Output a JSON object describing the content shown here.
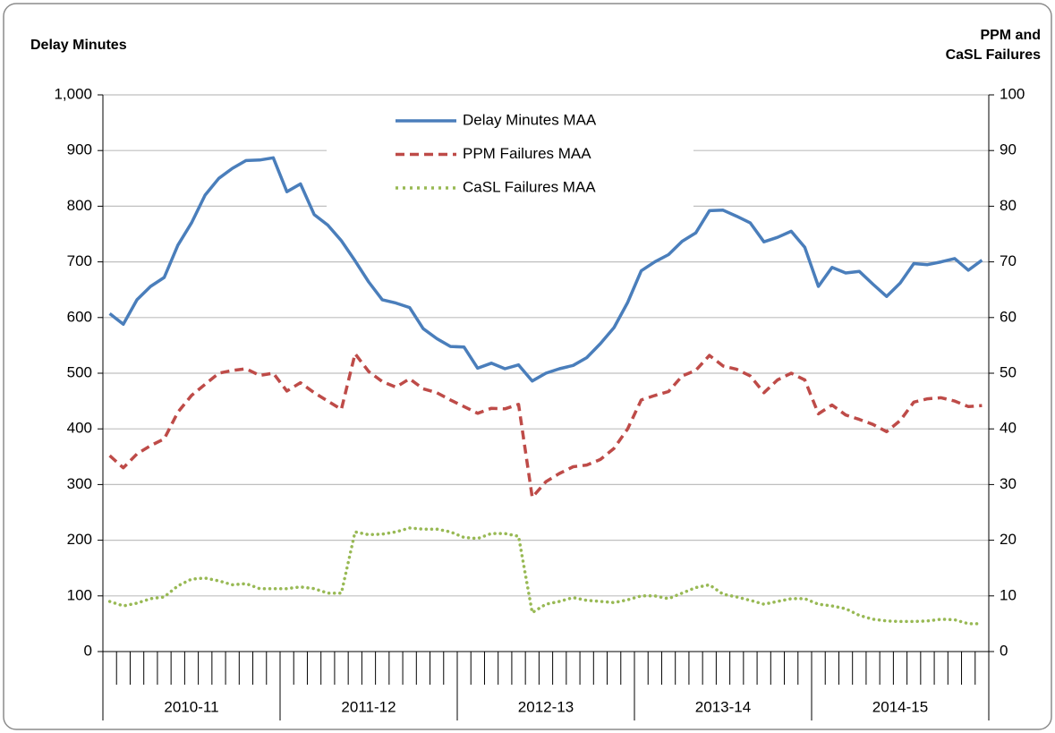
{
  "chart_data": {
    "type": "line",
    "y_label": "Delay Minutes",
    "y2_label": "PPM and\nCaSL Failures",
    "categories": [
      null,
      null,
      null,
      null,
      null,
      null,
      null,
      null,
      null,
      null,
      null,
      null,
      null,
      null,
      null,
      null,
      null,
      null,
      null,
      null,
      null,
      null,
      null,
      null,
      null,
      null,
      null,
      null,
      null,
      null,
      null,
      null,
      null,
      null,
      null,
      null,
      null,
      null,
      null,
      null,
      null,
      null,
      null,
      null,
      null,
      null,
      null,
      null,
      null,
      null,
      null,
      null,
      null,
      null,
      null,
      null,
      null,
      null,
      null,
      null,
      null,
      null,
      null,
      null,
      null
    ],
    "groups": [
      "2010-11",
      "2011-12",
      "2012-13",
      "2013-14",
      "2014-15"
    ],
    "ylim": [
      0,
      1000
    ],
    "yticks": [
      0,
      100,
      200,
      300,
      400,
      500,
      600,
      700,
      800,
      900,
      {
        "value": 1000,
        "label": "1,000"
      }
    ],
    "y2lim": [
      0,
      100
    ],
    "y2ticks": [
      0,
      10,
      20,
      30,
      40,
      50,
      60,
      70,
      80,
      90,
      100
    ],
    "grid": true,
    "series": [
      {
        "name": "Delay Minutes MAA",
        "color": "#4a7ebb",
        "dash": "none",
        "values": [
          607,
          588,
          632,
          656,
          672,
          730,
          770,
          820,
          850,
          868,
          882,
          883,
          887,
          826,
          840,
          785,
          766,
          738,
          702,
          664,
          632,
          626,
          618,
          580,
          562,
          548,
          547,
          509,
          518,
          508,
          515,
          486,
          500,
          508,
          514,
          528,
          553,
          582,
          627,
          684,
          700,
          713,
          737,
          752,
          792,
          793,
          782,
          770,
          736,
          744,
          755,
          726,
          656,
          690,
          680,
          683,
          660,
          638,
          662,
          697,
          695,
          700,
          706,
          685,
          703
        ]
      },
      {
        "name": "PPM Failures MAA",
        "color": "#be4b48",
        "dash": "dashed",
        "axis": "y2",
        "values": [
          35.2,
          33,
          35.5,
          37,
          38.2,
          43,
          46,
          48,
          50,
          50.5,
          50.8,
          49.6,
          50,
          46.8,
          48.3,
          46.5,
          45,
          43.5,
          53.5,
          50.3,
          48.5,
          47.5,
          49,
          47.2,
          46.5,
          45.2,
          44,
          42.8,
          43.7,
          43.6,
          44.4,
          27.7,
          30.5,
          32,
          33.2,
          33.5,
          34.5,
          36.5,
          40,
          45.2,
          46,
          46.7,
          49.5,
          50.5,
          53.2,
          51.3,
          50.7,
          49.5,
          46.5,
          48.8,
          50,
          48.8,
          42.7,
          44.3,
          42.5,
          41.7,
          40.8,
          39.5,
          41.5,
          44.8,
          45.4,
          45.6,
          45,
          44,
          44.2
        ]
      },
      {
        "name": "CaSL Failures MAA",
        "color": "#98b954",
        "dash": "dotted",
        "axis": "y2",
        "values": [
          9,
          8.2,
          8.7,
          9.5,
          9.8,
          11.8,
          13,
          13.2,
          12.7,
          12,
          12.2,
          11.3,
          11.3,
          11.3,
          11.6,
          11.3,
          10.5,
          10.5,
          21.5,
          21,
          21.1,
          21.5,
          22.2,
          22,
          22,
          21.5,
          20.5,
          20.3,
          21.2,
          21.2,
          20.7,
          7,
          8.5,
          9,
          9.7,
          9.2,
          9,
          8.8,
          9.3,
          10,
          10,
          9.5,
          10.5,
          11.5,
          12,
          10.3,
          9.8,
          9.2,
          8.5,
          9,
          9.5,
          9.5,
          8.5,
          8.2,
          7.7,
          6.5,
          5.8,
          5.5,
          5.4,
          5.4,
          5.5,
          5.8,
          5.7,
          5,
          5
        ]
      }
    ]
  }
}
